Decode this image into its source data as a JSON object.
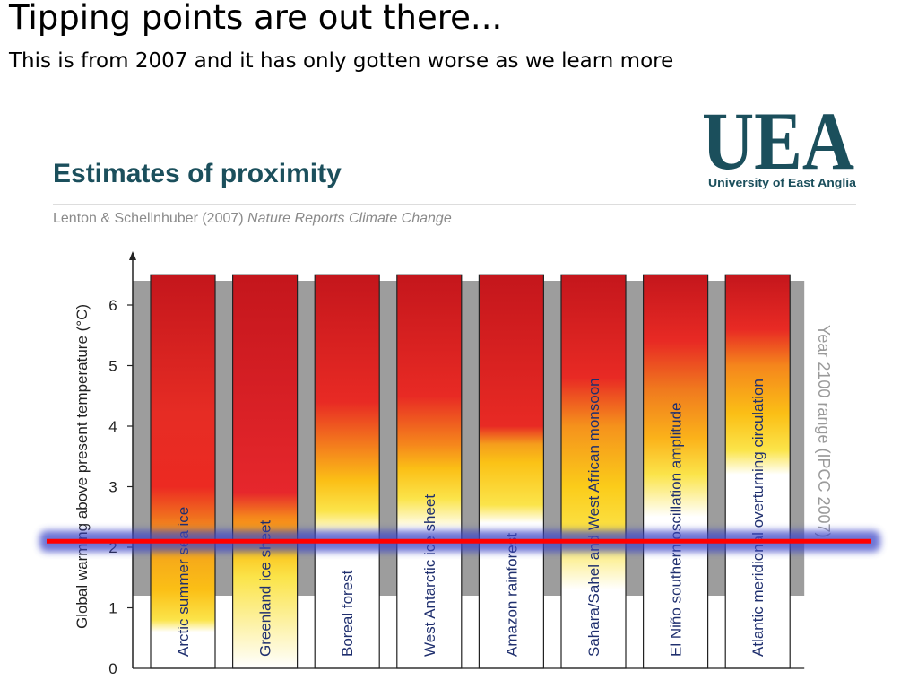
{
  "slide": {
    "title": "Tipping points are out there...",
    "subtitle": "This is from 2007 and it has only gotten worse as we learn more"
  },
  "figure": {
    "heading": "Estimates of proximity",
    "citation_authors": "Lenton & Schellnhuber (2007) ",
    "citation_journal": "Nature Reports Climate Change",
    "logo_text": "UEA",
    "logo_caption": "University of East Anglia"
  },
  "chart_data": {
    "type": "bar",
    "ylabel": "Global warming above present temperature (°C)",
    "ylim": [
      0,
      6.5
    ],
    "yticks": [
      "0",
      "1",
      "2",
      "3",
      "4",
      "5",
      "6"
    ],
    "categories": [
      "Arctic summer sea ice",
      "Greenland ice sheet",
      "Boreal forest",
      "West Antarctic ice sheet",
      "Amazon rainforest",
      "Sahara/Sahel and West African monsoon",
      "El Niño southern oscillation amplitude",
      "Atlantic meridional overturning circulation"
    ],
    "series": [
      {
        "gradient_stops": [
          [
            [
              0.0,
              "#ffffff"
            ],
            [
              0.6,
              "#ffffff"
            ],
            [
              0.8,
              "#fbe44a"
            ],
            [
              1.3,
              "#fbbf16"
            ],
            [
              2.2,
              "#f39a1c"
            ],
            [
              3.0,
              "#ec2a22"
            ],
            [
              4.2,
              "#e62c24"
            ],
            [
              6.5,
              "#c4161c"
            ]
          ],
          [
            [
              0.0,
              "#ffffff"
            ],
            [
              1.5,
              "#fbe44a"
            ],
            [
              2.0,
              "#fbbf16"
            ],
            [
              2.5,
              "#f5861c"
            ],
            [
              2.9,
              "#e6272c"
            ],
            [
              6.5,
              "#c4161c"
            ]
          ],
          [
            [
              0.0,
              "#ffffff"
            ],
            [
              2.2,
              "#ffffff"
            ],
            [
              2.6,
              "#fbe44a"
            ],
            [
              3.1,
              "#fbbf16"
            ],
            [
              3.6,
              "#f5861c"
            ],
            [
              4.4,
              "#e82a24"
            ],
            [
              6.5,
              "#c4161c"
            ]
          ],
          [
            [
              0.0,
              "#ffffff"
            ],
            [
              2.3,
              "#ffffff"
            ],
            [
              2.8,
              "#fbe44a"
            ],
            [
              3.3,
              "#fbbf16"
            ],
            [
              3.7,
              "#f5861c"
            ],
            [
              4.5,
              "#e82a24"
            ],
            [
              6.5,
              "#c4161c"
            ]
          ],
          [
            [
              0.0,
              "#ffffff"
            ],
            [
              2.4,
              "#ffffff"
            ],
            [
              2.7,
              "#fbe44a"
            ],
            [
              3.4,
              "#fbc216"
            ],
            [
              3.7,
              "#f59e1c"
            ],
            [
              4.0,
              "#e82a24"
            ],
            [
              6.5,
              "#c4161c"
            ]
          ],
          [
            [
              0.0,
              "#ffffff"
            ],
            [
              1.3,
              "#ffffff"
            ],
            [
              2.2,
              "#fbe44a"
            ],
            [
              3.0,
              "#fbcc1a"
            ],
            [
              4.0,
              "#f5921c"
            ],
            [
              4.8,
              "#e82a24"
            ],
            [
              6.5,
              "#c4161c"
            ]
          ],
          [
            [
              0.0,
              "#ffffff"
            ],
            [
              2.5,
              "#ffffff"
            ],
            [
              3.2,
              "#fbe44a"
            ],
            [
              3.8,
              "#fbb21a"
            ],
            [
              4.6,
              "#f07a1e"
            ],
            [
              5.4,
              "#e82a24"
            ],
            [
              6.5,
              "#c4161c"
            ]
          ],
          [
            [
              0.0,
              "#ffffff"
            ],
            [
              3.2,
              "#ffffff"
            ],
            [
              3.6,
              "#fbe44a"
            ],
            [
              4.2,
              "#fbbf16"
            ],
            [
              5.0,
              "#f5861c"
            ],
            [
              5.6,
              "#e82a24"
            ],
            [
              6.5,
              "#c4161c"
            ]
          ]
        ]
      }
    ],
    "ipcc_range": {
      "label": "Year 2100 range (IPCC 2007)",
      "min": 1.2,
      "max": 6.4,
      "color": "#9d9d9d"
    },
    "threshold": {
      "value": 2.1,
      "color": "#ff0000",
      "glow": "#3c46c8"
    },
    "grid": false
  }
}
